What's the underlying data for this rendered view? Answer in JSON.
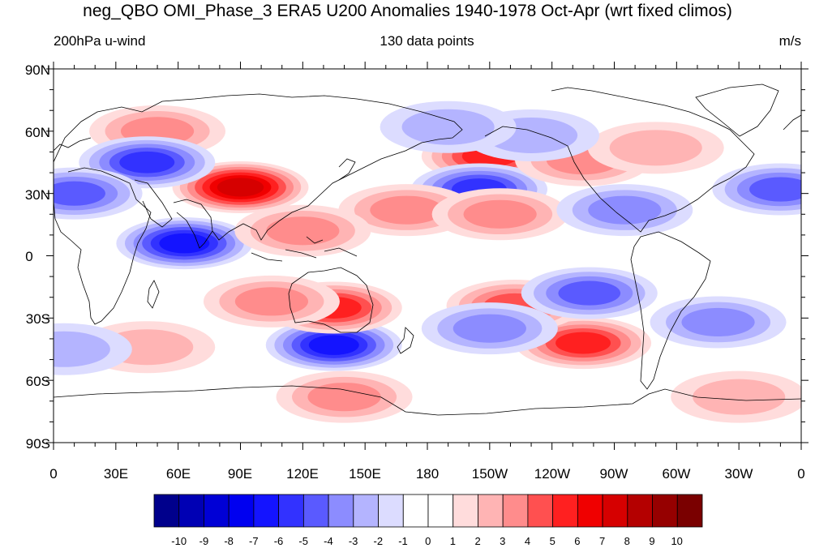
{
  "title": "neg_QBO OMI_Phase_3 ERA5 U200 Anomalies 1940-1978 Oct-Apr (wrt fixed climos)",
  "left_subtitle": "200hPa u-wind",
  "center_subtitle": "130 data points",
  "right_subtitle": "m/s",
  "lat_labels": [
    "90N",
    "60N",
    "30N",
    "0",
    "30S",
    "60S",
    "90S"
  ],
  "lon_labels": [
    "0",
    "30E",
    "60E",
    "90E",
    "120E",
    "150E",
    "180",
    "150W",
    "120W",
    "90W",
    "60W",
    "30W",
    "0"
  ],
  "colorbar": {
    "levels": [
      "-10",
      "-9",
      "-8",
      "-7",
      "-6",
      "-5",
      "-4",
      "-3",
      "-2",
      "-1",
      "0",
      "1",
      "2",
      "3",
      "4",
      "5",
      "6",
      "7",
      "8",
      "9",
      "10"
    ],
    "colors": [
      "#00008c",
      "#0000b4",
      "#0000d6",
      "#0000f0",
      "#1414ff",
      "#3232ff",
      "#5a5aff",
      "#8c8cff",
      "#b4b4ff",
      "#dcdcff",
      "#ffffff",
      "#ffffff",
      "#ffdcdc",
      "#ffb4b4",
      "#ff8c8c",
      "#ff5050",
      "#ff2020",
      "#f00000",
      "#d60000",
      "#b40000",
      "#960000",
      "#7a0000"
    ]
  },
  "anomaly_centers": [
    {
      "lon": 90,
      "lat": 33,
      "value": 7.5
    },
    {
      "lon": 50,
      "lat": 60,
      "value": 3
    },
    {
      "lon": 63,
      "lat": 6,
      "value": -6
    },
    {
      "lon": 45,
      "lat": 45,
      "value": -5
    },
    {
      "lon": 10,
      "lat": 30,
      "value": -4
    },
    {
      "lon": 135,
      "lat": -43,
      "value": -6
    },
    {
      "lon": 135,
      "lat": -25,
      "value": 5
    },
    {
      "lon": 105,
      "lat": -22,
      "value": 3
    },
    {
      "lon": 210,
      "lat": 48,
      "value": 5
    },
    {
      "lon": 205,
      "lat": 32,
      "value": -5
    },
    {
      "lon": 170,
      "lat": 22,
      "value": 3.5
    },
    {
      "lon": 215,
      "lat": 20,
      "value": 3
    },
    {
      "lon": 255,
      "lat": 46,
      "value": 3.5
    },
    {
      "lon": 290,
      "lat": 52,
      "value": 2.5
    },
    {
      "lon": 255,
      "lat": -42,
      "value": 5
    },
    {
      "lon": 222,
      "lat": -24,
      "value": 4
    },
    {
      "lon": 258,
      "lat": -18,
      "value": -4
    },
    {
      "lon": 210,
      "lat": -35,
      "value": -3
    },
    {
      "lon": 350,
      "lat": 32,
      "value": -4
    },
    {
      "lon": 275,
      "lat": 22,
      "value": -3
    },
    {
      "lon": 320,
      "lat": -32,
      "value": -3
    },
    {
      "lon": 140,
      "lat": -68,
      "value": 3
    },
    {
      "lon": 330,
      "lat": -68,
      "value": 2.5
    },
    {
      "lon": 45,
      "lat": -44,
      "value": 2.5
    },
    {
      "lon": 5,
      "lat": -45,
      "value": -2
    },
    {
      "lon": 120,
      "lat": 12,
      "value": 3
    },
    {
      "lon": 230,
      "lat": 58,
      "value": -2
    },
    {
      "lon": 190,
      "lat": 62,
      "value": -2
    }
  ]
}
